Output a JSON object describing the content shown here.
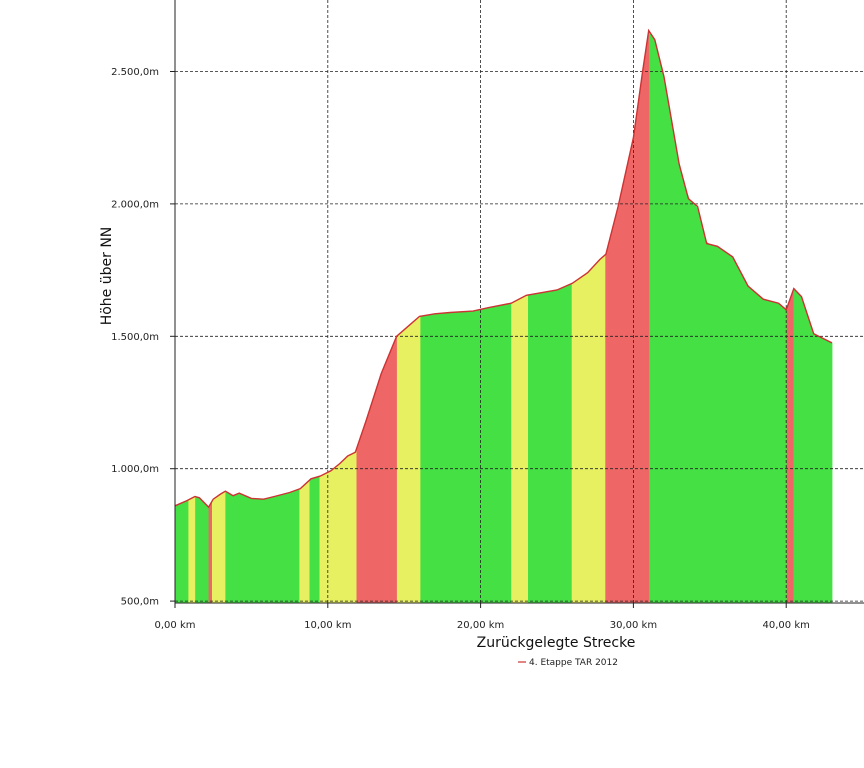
{
  "chart_data": {
    "type": "area",
    "title": "",
    "xlabel": "Zurückgelegte Strecke",
    "ylabel": "Höhe über NN",
    "x_unit": "km",
    "y_unit": "m",
    "xlim": [
      0,
      45
    ],
    "ylim": [
      500,
      2700
    ],
    "x_ticks": [
      0,
      10,
      20,
      30,
      40
    ],
    "x_tick_labels": [
      "0,00 km",
      "10,00 km",
      "20,00 km",
      "30,00 km",
      "40,00 km"
    ],
    "y_ticks": [
      500,
      1000,
      1500,
      2000,
      2500
    ],
    "y_tick_labels": [
      "500,0m",
      "1.000,0m",
      "1.500,0m",
      "2.000,0m",
      "2.500,0m"
    ],
    "grid": true,
    "legend_position": "bottom-center",
    "gradient_colors": {
      "flat": "#44e044",
      "moderate": "#e6f060",
      "steep": "#ee6666"
    },
    "series": [
      {
        "name": "4. Etappe TAR 2012",
        "color": "#cc3333",
        "points": [
          [
            0,
            860
          ],
          [
            0.8,
            880
          ],
          [
            1.3,
            895
          ],
          [
            1.6,
            890
          ],
          [
            2.2,
            855
          ],
          [
            2.5,
            885
          ],
          [
            3.0,
            905
          ],
          [
            3.3,
            915
          ],
          [
            3.8,
            898
          ],
          [
            4.2,
            908
          ],
          [
            5.0,
            888
          ],
          [
            5.8,
            885
          ],
          [
            6.5,
            895
          ],
          [
            7.5,
            910
          ],
          [
            8.2,
            925
          ],
          [
            8.9,
            962
          ],
          [
            9.5,
            972
          ],
          [
            10.2,
            992
          ],
          [
            10.8,
            1020
          ],
          [
            11.3,
            1048
          ],
          [
            11.8,
            1062
          ],
          [
            12.5,
            1180
          ],
          [
            13.5,
            1360
          ],
          [
            14.5,
            1500
          ],
          [
            15.3,
            1540
          ],
          [
            16.0,
            1575
          ],
          [
            17.0,
            1585
          ],
          [
            18.0,
            1590
          ],
          [
            19.5,
            1595
          ],
          [
            20.5,
            1608
          ],
          [
            22.0,
            1625
          ],
          [
            23.0,
            1655
          ],
          [
            25.0,
            1675
          ],
          [
            26.0,
            1700
          ],
          [
            27.0,
            1740
          ],
          [
            27.8,
            1790
          ],
          [
            28.2,
            1810
          ],
          [
            29.0,
            1990
          ],
          [
            30.0,
            2250
          ],
          [
            30.6,
            2500
          ],
          [
            31.0,
            2655
          ],
          [
            31.4,
            2620
          ],
          [
            32.0,
            2480
          ],
          [
            33.0,
            2150
          ],
          [
            33.6,
            2020
          ],
          [
            34.2,
            1990
          ],
          [
            34.8,
            1850
          ],
          [
            35.5,
            1840
          ],
          [
            36.5,
            1800
          ],
          [
            37.5,
            1690
          ],
          [
            38.5,
            1640
          ],
          [
            39.5,
            1625
          ],
          [
            40.0,
            1600
          ],
          [
            40.5,
            1680
          ],
          [
            41.0,
            1650
          ],
          [
            41.8,
            1510
          ],
          [
            43.0,
            1475
          ]
        ]
      }
    ]
  }
}
